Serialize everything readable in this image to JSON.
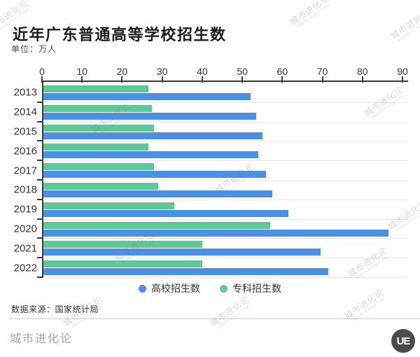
{
  "header": {
    "title": "近年广东普通高等学校招生数",
    "unit_label": "单位：万人"
  },
  "chart_data": {
    "type": "bar",
    "orientation": "horizontal",
    "title": "近年广东普通高等学校招生数",
    "unit": "万人",
    "categories": [
      "2013",
      "2014",
      "2015",
      "2016",
      "2017",
      "2018",
      "2019",
      "2020",
      "2021",
      "2022"
    ],
    "series": [
      {
        "key": "higher-ed",
        "name": "高校招生数",
        "color": "#4a90e6",
        "values": [
          52,
          53.5,
          55,
          54,
          56,
          57.5,
          61.5,
          86.5,
          69.5,
          71.5
        ]
      },
      {
        "key": "vocational",
        "name": "专科招生数",
        "color": "#5fc897",
        "values": [
          26.5,
          27.5,
          28,
          26.5,
          28,
          29,
          33,
          57,
          40,
          40
        ]
      }
    ],
    "xlim": [
      0,
      90
    ],
    "xticks": [
      0,
      10,
      20,
      30,
      40,
      50,
      60,
      70,
      80,
      90
    ],
    "grid": "horizontal-row-separators-only",
    "legend_position": "bottom"
  },
  "legend": {
    "items": [
      {
        "label": "高校招生数",
        "color": "#4a90e6"
      },
      {
        "label": "专科招生数",
        "color": "#5fc897"
      }
    ]
  },
  "footer": {
    "source": "数据来源：国家统计局",
    "brand": "城市进化论",
    "logo_text": "UE"
  },
  "watermark": {
    "line1": "城市进化论",
    "line2": "URBAN EVOLUTION"
  }
}
